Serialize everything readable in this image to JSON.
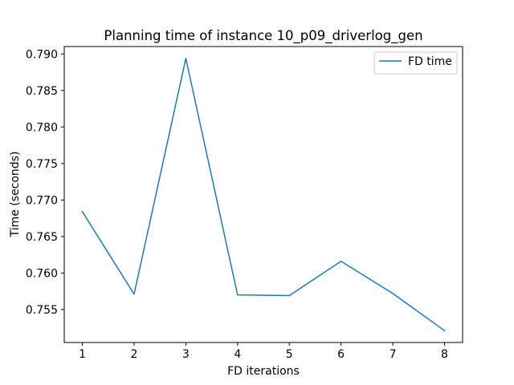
{
  "chart_data": {
    "type": "line",
    "title": "Planning time of instance 10_p09_driverlog_gen",
    "xlabel": "FD iterations",
    "ylabel": "Time (seconds)",
    "x": [
      1,
      2,
      3,
      4,
      5,
      6,
      7,
      8
    ],
    "series": [
      {
        "name": "FD time",
        "color": "#1f77b4",
        "values": [
          0.7684,
          0.7571,
          0.7894,
          0.757,
          0.7569,
          0.7616,
          0.7572,
          0.7521
        ]
      }
    ],
    "xticks": [
      1,
      2,
      3,
      4,
      5,
      6,
      7,
      8
    ],
    "yticks": [
      0.755,
      0.76,
      0.765,
      0.77,
      0.775,
      0.78,
      0.785,
      0.79
    ],
    "ytick_labels": [
      "0.755",
      "0.760",
      "0.765",
      "0.770",
      "0.775",
      "0.780",
      "0.785",
      "0.790"
    ],
    "xlim": [
      0.65,
      8.35
    ],
    "ylim": [
      0.75048,
      0.79102
    ],
    "grid": false,
    "legend_position": "top-right"
  }
}
